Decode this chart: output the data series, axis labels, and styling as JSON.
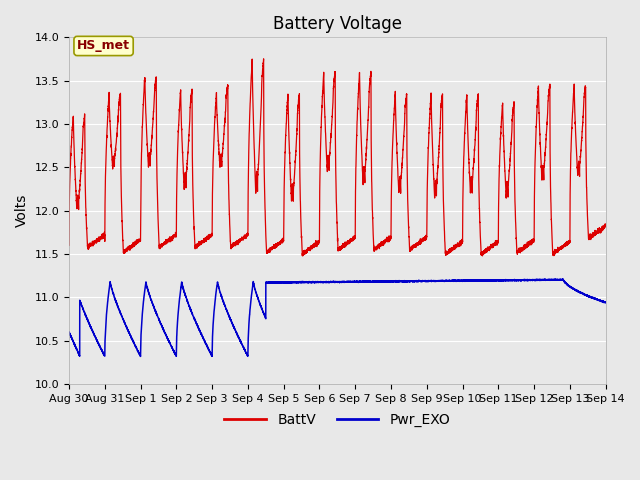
{
  "title": "Battery Voltage",
  "ylabel": "Volts",
  "ylim": [
    10.0,
    14.0
  ],
  "background_color": "#e8e8e8",
  "plot_bg_color": "#e8e8e8",
  "grid_color": "#ffffff",
  "annotation_text": "HS_met",
  "annotation_bg": "#ffffcc",
  "annotation_border": "#999900",
  "annotation_text_color": "#880000",
  "line1_color": "#dd0000",
  "line1_label": "BattV",
  "line2_color": "#0000cc",
  "line2_label": "Pwr_EXO",
  "xtick_labels": [
    "Aug 30",
    "Aug 31",
    "Sep 1",
    "Sep 2",
    "Sep 3",
    "Sep 4",
    "Sep 5",
    "Sep 6",
    "Sep 7",
    "Sep 8",
    "Sep 9",
    "Sep 10",
    "Sep 11",
    "Sep 12",
    "Sep 13",
    "Sep 14"
  ],
  "num_days": 15,
  "title_fontsize": 12,
  "axis_fontsize": 10,
  "tick_fontsize": 8,
  "legend_fontsize": 10
}
